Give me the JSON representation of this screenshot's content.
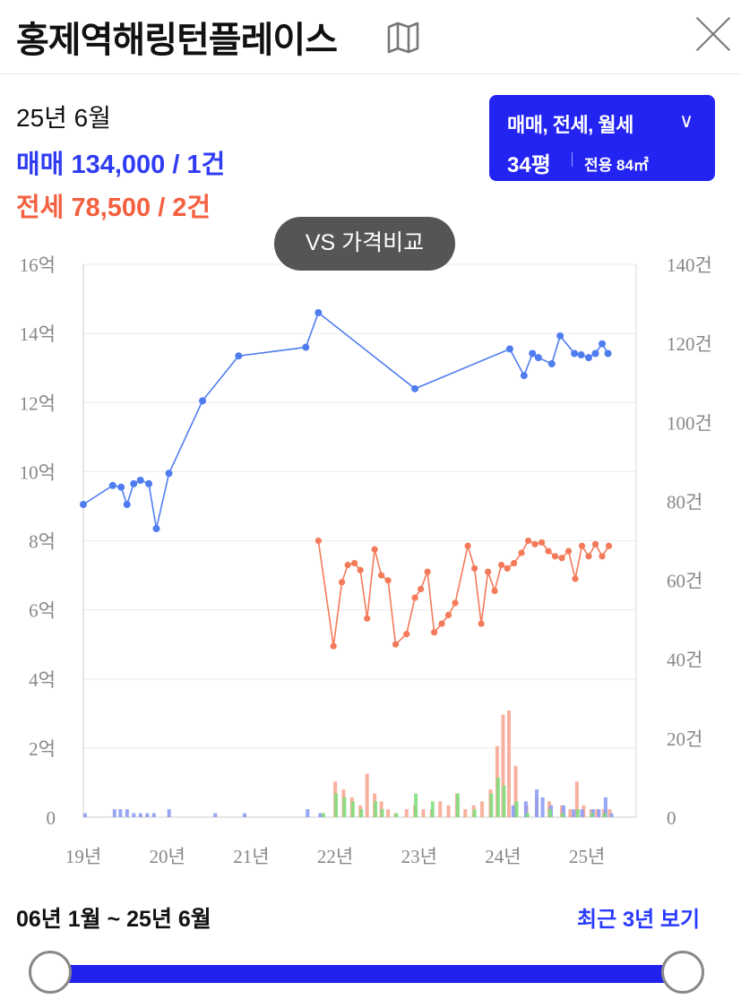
{
  "header": {
    "title": "홍제역해링턴플레이스"
  },
  "summary": {
    "date": "25년 6월",
    "sale_label": "매매",
    "sale_value": "134,000 / 1건",
    "jeonse_label": "전세",
    "jeonse_value": "78,500 / 2건"
  },
  "filter": {
    "types": "매매, 전세, 월세",
    "size": "34평",
    "area": "전용 84㎡"
  },
  "vs_button": "VS 가격비교",
  "colors": {
    "sale": "#4f7df0",
    "jeonse": "#f47a59",
    "accent": "#2424f2",
    "volume_green": "#7be07b"
  },
  "chart_data": {
    "type": "line",
    "x_ticks": [
      "19년",
      "20년",
      "21년",
      "22년",
      "23년",
      "24년",
      "25년"
    ],
    "left_axis": {
      "ticks": [
        "0",
        "2억",
        "4억",
        "6억",
        "8억",
        "10억",
        "12억",
        "14억",
        "16억"
      ],
      "range": [
        0,
        16
      ]
    },
    "right_axis": {
      "ticks": [
        "0",
        "20건",
        "40건",
        "60건",
        "80건",
        "100건",
        "120건",
        "140건"
      ],
      "range": [
        0,
        140
      ]
    },
    "x_range": [
      2019.0,
      2025.5
    ],
    "series": [
      {
        "name": "매매",
        "color": "#4f7df0",
        "points": [
          [
            2019.0,
            9.05
          ],
          [
            2019.35,
            9.6
          ],
          [
            2019.45,
            9.55
          ],
          [
            2019.52,
            9.05
          ],
          [
            2019.6,
            9.65
          ],
          [
            2019.68,
            9.75
          ],
          [
            2019.78,
            9.65
          ],
          [
            2019.87,
            8.35
          ],
          [
            2020.02,
            9.95
          ],
          [
            2020.42,
            12.05
          ],
          [
            2020.85,
            13.35
          ],
          [
            2021.65,
            13.6
          ],
          [
            2021.8,
            14.6
          ],
          [
            2022.95,
            12.4
          ],
          [
            2024.08,
            13.55
          ],
          [
            2024.25,
            12.78
          ],
          [
            2024.35,
            13.42
          ],
          [
            2024.42,
            13.3
          ],
          [
            2024.58,
            13.12
          ],
          [
            2024.68,
            13.93
          ],
          [
            2024.85,
            13.42
          ],
          [
            2024.93,
            13.38
          ],
          [
            2025.02,
            13.3
          ],
          [
            2025.1,
            13.42
          ],
          [
            2025.18,
            13.7
          ],
          [
            2025.25,
            13.42
          ]
        ]
      },
      {
        "name": "전세",
        "color": "#f47a59",
        "points": [
          [
            2021.8,
            8.0
          ],
          [
            2021.98,
            4.95
          ],
          [
            2022.08,
            6.8
          ],
          [
            2022.15,
            7.3
          ],
          [
            2022.23,
            7.35
          ],
          [
            2022.3,
            7.15
          ],
          [
            2022.38,
            5.75
          ],
          [
            2022.47,
            7.75
          ],
          [
            2022.55,
            7.0
          ],
          [
            2022.63,
            6.85
          ],
          [
            2022.72,
            5.0
          ],
          [
            2022.85,
            5.3
          ],
          [
            2022.95,
            6.35
          ],
          [
            2023.02,
            6.6
          ],
          [
            2023.1,
            7.1
          ],
          [
            2023.18,
            5.35
          ],
          [
            2023.27,
            5.6
          ],
          [
            2023.35,
            5.85
          ],
          [
            2023.43,
            6.2
          ],
          [
            2023.58,
            7.85
          ],
          [
            2023.66,
            7.2
          ],
          [
            2023.74,
            5.6
          ],
          [
            2023.82,
            7.1
          ],
          [
            2023.9,
            6.55
          ],
          [
            2023.98,
            7.3
          ],
          [
            2024.05,
            7.2
          ],
          [
            2024.13,
            7.35
          ],
          [
            2024.22,
            7.65
          ],
          [
            2024.3,
            8.0
          ],
          [
            2024.38,
            7.9
          ],
          [
            2024.46,
            7.95
          ],
          [
            2024.54,
            7.7
          ],
          [
            2024.62,
            7.55
          ],
          [
            2024.7,
            7.5
          ],
          [
            2024.78,
            7.7
          ],
          [
            2024.86,
            6.9
          ],
          [
            2024.94,
            7.85
          ],
          [
            2025.02,
            7.55
          ],
          [
            2025.1,
            7.9
          ],
          [
            2025.18,
            7.55
          ],
          [
            2025.26,
            7.85
          ]
        ]
      }
    ],
    "volume_bars": {
      "sale": [
        [
          2019.0,
          1
        ],
        [
          2019.35,
          2
        ],
        [
          2019.42,
          2
        ],
        [
          2019.5,
          2
        ],
        [
          2019.58,
          1
        ],
        [
          2019.66,
          1
        ],
        [
          2019.74,
          1
        ],
        [
          2019.82,
          1
        ],
        [
          2020.0,
          2
        ],
        [
          2020.55,
          1
        ],
        [
          2020.9,
          1
        ],
        [
          2021.65,
          2
        ],
        [
          2021.8,
          1
        ],
        [
          2024.1,
          3
        ],
        [
          2024.25,
          4
        ],
        [
          2024.38,
          7
        ],
        [
          2024.45,
          5
        ],
        [
          2024.55,
          3
        ],
        [
          2024.7,
          3
        ],
        [
          2024.82,
          2
        ],
        [
          2024.92,
          2
        ],
        [
          2025.05,
          2
        ],
        [
          2025.12,
          2
        ],
        [
          2025.2,
          5
        ],
        [
          2025.27,
          1
        ]
      ],
      "jeonse": [
        [
          2021.85,
          1
        ],
        [
          2022.0,
          9
        ],
        [
          2022.1,
          7
        ],
        [
          2022.2,
          5
        ],
        [
          2022.3,
          3
        ],
        [
          2022.38,
          11
        ],
        [
          2022.47,
          6
        ],
        [
          2022.55,
          4
        ],
        [
          2022.63,
          2
        ],
        [
          2022.72,
          1
        ],
        [
          2022.85,
          2
        ],
        [
          2022.95,
          3
        ],
        [
          2023.05,
          2
        ],
        [
          2023.15,
          2
        ],
        [
          2023.25,
          4
        ],
        [
          2023.35,
          3
        ],
        [
          2023.45,
          6
        ],
        [
          2023.55,
          2
        ],
        [
          2023.65,
          3
        ],
        [
          2023.75,
          4
        ],
        [
          2023.85,
          7
        ],
        [
          2023.93,
          18
        ],
        [
          2024.0,
          26
        ],
        [
          2024.07,
          27
        ],
        [
          2024.15,
          13
        ],
        [
          2024.28,
          3
        ],
        [
          2024.4,
          5
        ],
        [
          2024.55,
          4
        ],
        [
          2024.7,
          3
        ],
        [
          2024.8,
          2
        ],
        [
          2024.88,
          9
        ],
        [
          2024.96,
          3
        ],
        [
          2025.05,
          2
        ],
        [
          2025.12,
          2
        ],
        [
          2025.2,
          2
        ],
        [
          2025.27,
          2
        ]
      ],
      "wolse": [
        [
          2021.85,
          1
        ],
        [
          2022.0,
          6
        ],
        [
          2022.1,
          5
        ],
        [
          2022.2,
          4
        ],
        [
          2022.3,
          2
        ],
        [
          2022.47,
          4
        ],
        [
          2022.55,
          2
        ],
        [
          2022.72,
          1
        ],
        [
          2022.95,
          6
        ],
        [
          2023.15,
          4
        ],
        [
          2023.45,
          6
        ],
        [
          2023.65,
          2
        ],
        [
          2023.85,
          6
        ],
        [
          2023.93,
          10
        ],
        [
          2024.0,
          8
        ],
        [
          2024.15,
          4
        ],
        [
          2024.28,
          1
        ],
        [
          2024.55,
          2
        ],
        [
          2024.7,
          1
        ],
        [
          2024.88,
          2
        ],
        [
          2025.05,
          1
        ],
        [
          2025.2,
          1
        ]
      ]
    }
  },
  "range": {
    "label": "06년 1월 ~ 25년 6월",
    "recent": "최근 3년 보기"
  }
}
